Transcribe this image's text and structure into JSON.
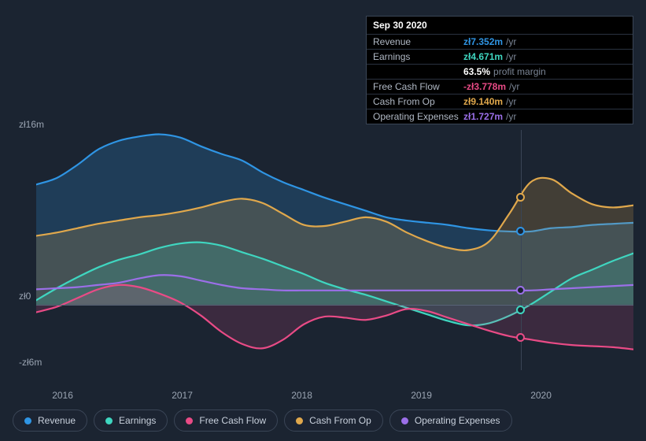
{
  "chart": {
    "type": "area",
    "background_color": "#1b2431",
    "grid_color": "#3a4556",
    "zero_line_color": "#5a6578",
    "text_color": "#9aa4b2",
    "y_axis": {
      "max_label": "zł16m",
      "zero_label": "zł0",
      "min_label": "-zł6m",
      "max": 16,
      "min": -6,
      "zero": 0
    },
    "x_axis": {
      "labels": [
        "2016",
        "2017",
        "2018",
        "2019",
        "2020"
      ],
      "positions": [
        0.045,
        0.245,
        0.445,
        0.645,
        0.845
      ]
    },
    "hover_x": 0.81,
    "series": {
      "revenue": {
        "label": "Revenue",
        "color": "#2f95e4",
        "fill_opacity": 0.22,
        "points": [
          11.0,
          11.6,
          12.8,
          14.2,
          15.0,
          15.4,
          15.6,
          15.3,
          14.5,
          13.8,
          13.2,
          12.1,
          11.2,
          10.5,
          9.8,
          9.2,
          8.6,
          8.0,
          7.7,
          7.5,
          7.3,
          7.0,
          6.8,
          6.7,
          6.7,
          7.0,
          7.1,
          7.3,
          7.4,
          7.5
        ]
      },
      "earnings": {
        "label": "Earnings",
        "color": "#3fd6c0",
        "fill_opacity": 0.18,
        "points": [
          0.4,
          1.5,
          2.5,
          3.4,
          4.1,
          4.6,
          5.2,
          5.6,
          5.7,
          5.4,
          4.8,
          4.2,
          3.5,
          2.8,
          2.0,
          1.4,
          0.9,
          0.3,
          -0.3,
          -0.9,
          -1.5,
          -1.9,
          -1.7,
          -1.0,
          0.0,
          1.2,
          2.4,
          3.2,
          4.0,
          4.7
        ]
      },
      "fcf": {
        "label": "Free Cash Flow",
        "color": "#e94b86",
        "fill_opacity": 0.16,
        "points": [
          -0.7,
          -0.2,
          0.6,
          1.4,
          1.8,
          1.6,
          1.0,
          0.2,
          -1.0,
          -2.5,
          -3.6,
          -4.0,
          -3.2,
          -1.8,
          -1.1,
          -1.2,
          -1.4,
          -1.0,
          -0.4,
          -0.6,
          -1.2,
          -1.8,
          -2.4,
          -2.9,
          -3.2,
          -3.5,
          -3.7,
          -3.8,
          -3.9,
          -4.1
        ]
      },
      "cashop": {
        "label": "Cash From Op",
        "color": "#e0a84c",
        "fill_opacity": 0.2,
        "points": [
          6.3,
          6.6,
          7.0,
          7.4,
          7.7,
          8.0,
          8.2,
          8.5,
          8.9,
          9.4,
          9.7,
          9.3,
          8.3,
          7.3,
          7.2,
          7.6,
          8.0,
          7.6,
          6.6,
          5.8,
          5.2,
          5.0,
          5.8,
          8.4,
          11.2,
          11.5,
          10.2,
          9.2,
          8.9,
          9.1
        ]
      },
      "opex": {
        "label": "Operating Expenses",
        "color": "#9b6fe8",
        "fill_opacity": 0.0,
        "points": [
          1.4,
          1.5,
          1.6,
          1.8,
          2.0,
          2.4,
          2.7,
          2.6,
          2.2,
          1.8,
          1.5,
          1.4,
          1.3,
          1.3,
          1.3,
          1.3,
          1.3,
          1.3,
          1.3,
          1.3,
          1.3,
          1.3,
          1.3,
          1.3,
          1.3,
          1.4,
          1.5,
          1.6,
          1.7,
          1.8
        ]
      }
    }
  },
  "tooltip": {
    "date": "Sep 30 2020",
    "rows": [
      {
        "label": "Revenue",
        "value": "zł7.352m",
        "color": "#2f95e4",
        "suffix": "/yr"
      },
      {
        "label": "Earnings",
        "value": "zł4.671m",
        "color": "#3fd6c0",
        "suffix": "/yr"
      },
      {
        "label": "",
        "value": "63.5%",
        "color": "#ffffff",
        "suffix": "profit margin"
      },
      {
        "label": "Free Cash Flow",
        "value": "-zł3.778m",
        "color": "#e94b86",
        "suffix": "/yr"
      },
      {
        "label": "Cash From Op",
        "value": "zł9.140m",
        "color": "#e0a84c",
        "suffix": "/yr"
      },
      {
        "label": "Operating Expenses",
        "value": "zł1.727m",
        "color": "#9b6fe8",
        "suffix": "/yr"
      }
    ]
  },
  "legend": [
    {
      "key": "revenue",
      "label": "Revenue",
      "color": "#2f95e4"
    },
    {
      "key": "earnings",
      "label": "Earnings",
      "color": "#3fd6c0"
    },
    {
      "key": "fcf",
      "label": "Free Cash Flow",
      "color": "#e94b86"
    },
    {
      "key": "cashop",
      "label": "Cash From Op",
      "color": "#e0a84c"
    },
    {
      "key": "opex",
      "label": "Operating Expenses",
      "color": "#9b6fe8"
    }
  ]
}
